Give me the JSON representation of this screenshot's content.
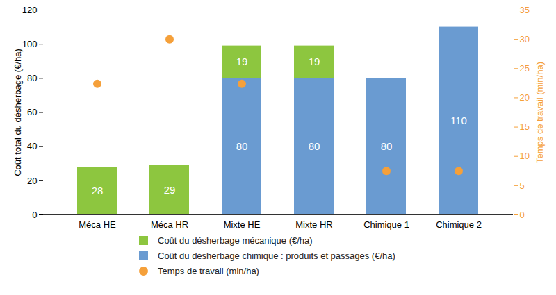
{
  "chart_data": {
    "type": "bar",
    "stacked": true,
    "data_labels": true,
    "categories": [
      "Méca HE",
      "Méca HR",
      "Mixte HE",
      "Mixte HR",
      "Chimique 1",
      "Chimique 2"
    ],
    "y_label": "Coût total du désherbage (€/ha)",
    "y2_label": "Temps de travail (min/ha)",
    "ylim": [
      0,
      120
    ],
    "yticks": [
      0,
      20,
      40,
      60,
      80,
      100,
      120
    ],
    "y2lim": [
      0,
      35
    ],
    "y2ticks": [
      0,
      5,
      10,
      15,
      20,
      25,
      30,
      35
    ],
    "series": [
      {
        "name": "Coût du désherbage mécanique (€/ha)",
        "color": "#8dc63f",
        "type": "bar",
        "values": [
          28,
          29,
          19,
          19,
          null,
          null
        ]
      },
      {
        "name": "Coût du désherbage chimique : produits et passages (€/ha)",
        "color": "#6a9bd1",
        "type": "bar",
        "values": [
          null,
          null,
          80,
          80,
          80,
          110
        ]
      },
      {
        "name": "Temps de travail (min/ha)",
        "color": "#f5a03a",
        "type": "scatter",
        "axis": "y2",
        "marker": "circle",
        "values": [
          22.4,
          30,
          22.4,
          null,
          7.5,
          7.5
        ]
      }
    ],
    "legend": "bottom"
  }
}
